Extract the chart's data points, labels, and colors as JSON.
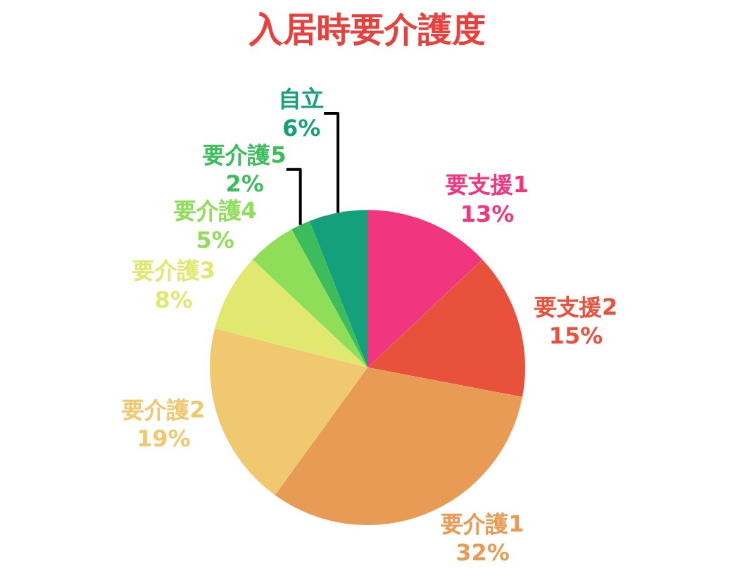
{
  "chart_data": {
    "type": "pie",
    "title": "入居時要介護度",
    "categories": [
      "要支援1",
      "要支援2",
      "要介護1",
      "要介護2",
      "要介護3",
      "要介護4",
      "要介護5",
      "自立"
    ],
    "values": [
      13,
      15,
      32,
      19,
      8,
      5,
      2,
      6
    ],
    "value_labels": [
      "13%",
      "15%",
      "32%",
      "19%",
      "8%",
      "5%",
      "2%",
      "6%"
    ],
    "colors": [
      "#f0367f",
      "#e8523c",
      "#e89b55",
      "#f0c870",
      "#e0e870",
      "#8ede5a",
      "#3cbc5a",
      "#14a07a"
    ],
    "legend": false
  }
}
